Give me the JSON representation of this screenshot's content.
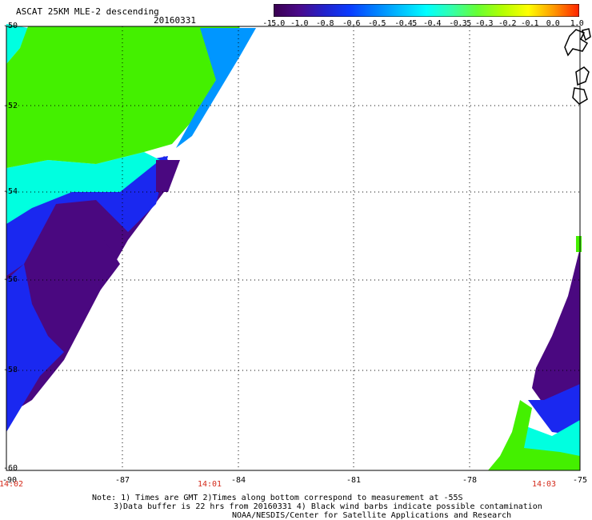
{
  "header": {
    "title": "ASCAT 25KM MLE-2 descending",
    "date": "20160331"
  },
  "colorbar": {
    "labels": [
      "-15.0",
      "-1.0",
      "-0.8",
      "-0.6",
      "-0.5",
      "-0.45",
      "-0.4",
      "-0.35",
      "-0.3",
      "-0.2",
      "-0.1",
      "0.0",
      "1.0"
    ],
    "colors": [
      "#3a0050",
      "#4a0a8a",
      "#2222cc",
      "#0a3cff",
      "#0080ff",
      "#00c0ff",
      "#00ffff",
      "#33ffaa",
      "#66ff33",
      "#b4ff00",
      "#ffff00",
      "#ff9900",
      "#ff2200"
    ]
  },
  "axes": {
    "lat_labels": [
      "-50",
      "-52",
      "-54",
      "-56",
      "-58",
      "-60"
    ],
    "lon_labels": [
      "-90",
      "-87",
      "-84",
      "-81",
      "-78",
      "-75"
    ]
  },
  "times": [
    "14:02",
    "14:01",
    "14:03"
  ],
  "notes": {
    "line1": "Note: 1) Times are GMT 2)Times along bottom correspond to measurement at -55S",
    "line2": "3)Data buffer is 22 hrs from 20160331 4) Black wind barbs indicate possible contamination",
    "line3": "NOAA/NESDIS/Center for Satellite Applications and Research"
  },
  "map_colors": {
    "green": "#44f000",
    "cyan": "#00ffe0",
    "blue": "#1a28f0",
    "purple": "#4a0880",
    "lightblue": "#0096ff",
    "land": "#000000"
  }
}
